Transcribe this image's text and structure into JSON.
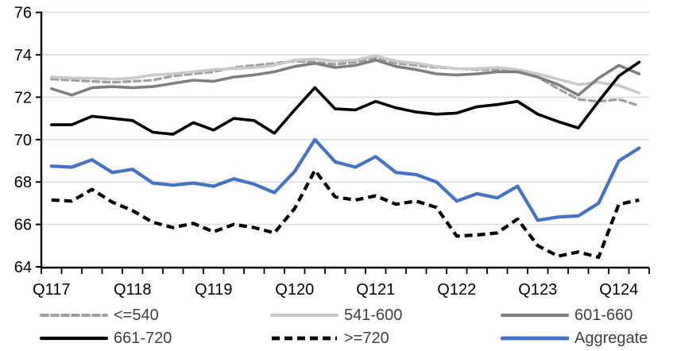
{
  "chart_data": {
    "type": "line",
    "title": "",
    "xlabel": "",
    "ylabel": "",
    "x_meaning": "quarters Q1 2017 through Q2 2024 (30 points)",
    "n_points": 30,
    "x_tick_labels": [
      "Q117",
      "Q118",
      "Q119",
      "Q120",
      "Q121",
      "Q122",
      "Q123",
      "Q124"
    ],
    "x_label_point_indices": [
      0,
      4,
      8,
      12,
      16,
      20,
      24,
      28
    ],
    "y_ticks": [
      "64",
      "66",
      "68",
      "70",
      "72",
      "74",
      "76"
    ],
    "ylim": [
      64,
      76
    ],
    "grid": true,
    "legend_position": "bottom",
    "colors": {
      "gridline": "#d9d9d9",
      "axis": "#000000",
      "axis_text": "#000000",
      "legend_text": "#404040",
      "accent_blue": "#4472c4",
      "light_gray": "#c9c9c9",
      "mid_gray": "#a0a0a0",
      "dark_gray": "#7f7f7f",
      "black": "#000000"
    },
    "series": [
      {
        "name": "<=540",
        "color": "#a0a0a0",
        "dash": "8 5",
        "cap": "round",
        "width": 3.3,
        "values": [
          72.85,
          72.8,
          72.75,
          72.7,
          72.75,
          72.8,
          73.0,
          73.1,
          73.2,
          73.4,
          73.5,
          73.6,
          73.7,
          73.65,
          73.55,
          73.65,
          73.85,
          73.6,
          73.5,
          73.4,
          73.35,
          73.3,
          73.3,
          73.25,
          72.95,
          72.4,
          71.9,
          71.8,
          71.9,
          71.6
        ]
      },
      {
        "name": "541-600",
        "color": "#c9c9c9",
        "dash": "",
        "cap": "round",
        "width": 3.6,
        "values": [
          72.95,
          72.9,
          72.9,
          72.85,
          72.9,
          73.05,
          73.1,
          73.2,
          73.3,
          73.35,
          73.4,
          73.5,
          73.75,
          73.8,
          73.7,
          73.75,
          73.95,
          73.7,
          73.6,
          73.45,
          73.35,
          73.35,
          73.4,
          73.3,
          73.1,
          72.85,
          72.6,
          72.7,
          72.55,
          72.2
        ]
      },
      {
        "name": "601-660",
        "color": "#7f7f7f",
        "dash": "",
        "cap": "round",
        "width": 3.6,
        "values": [
          72.4,
          72.1,
          72.45,
          72.5,
          72.45,
          72.5,
          72.65,
          72.8,
          72.75,
          72.95,
          73.05,
          73.2,
          73.45,
          73.6,
          73.4,
          73.5,
          73.75,
          73.45,
          73.3,
          73.1,
          73.05,
          73.1,
          73.2,
          73.2,
          72.95,
          72.6,
          72.1,
          72.9,
          73.5,
          73.1
        ]
      },
      {
        "name": "661-720",
        "color": "#000000",
        "dash": "",
        "cap": "round",
        "width": 3.6,
        "values": [
          70.7,
          70.7,
          71.1,
          71.0,
          70.9,
          70.35,
          70.25,
          70.8,
          70.45,
          71.0,
          70.9,
          70.3,
          71.4,
          72.45,
          71.45,
          71.4,
          71.8,
          71.5,
          71.3,
          71.2,
          71.25,
          71.55,
          71.65,
          71.8,
          71.2,
          70.85,
          70.55,
          71.8,
          73.0,
          73.65
        ]
      },
      {
        "name": ">=720",
        "color": "#000000",
        "dash": "10 6",
        "cap": "butt",
        "width": 4.2,
        "values": [
          67.15,
          67.1,
          67.65,
          67.05,
          66.65,
          66.1,
          65.85,
          66.05,
          65.65,
          66.0,
          65.85,
          65.6,
          66.75,
          68.55,
          67.3,
          67.15,
          67.35,
          66.95,
          67.1,
          66.8,
          65.45,
          65.5,
          65.6,
          66.25,
          65.0,
          64.5,
          64.7,
          64.45,
          66.95,
          67.15
        ]
      },
      {
        "name": "Aggregate",
        "color": "#4472c4",
        "dash": "",
        "cap": "round",
        "width": 4.2,
        "values": [
          68.75,
          68.7,
          69.05,
          68.45,
          68.6,
          67.95,
          67.85,
          67.95,
          67.8,
          68.15,
          67.9,
          67.5,
          68.5,
          70.0,
          68.95,
          68.7,
          69.2,
          68.45,
          68.35,
          68.0,
          67.1,
          67.45,
          67.25,
          67.8,
          66.2,
          66.35,
          66.4,
          67.0,
          69.0,
          69.6
        ]
      }
    ]
  }
}
